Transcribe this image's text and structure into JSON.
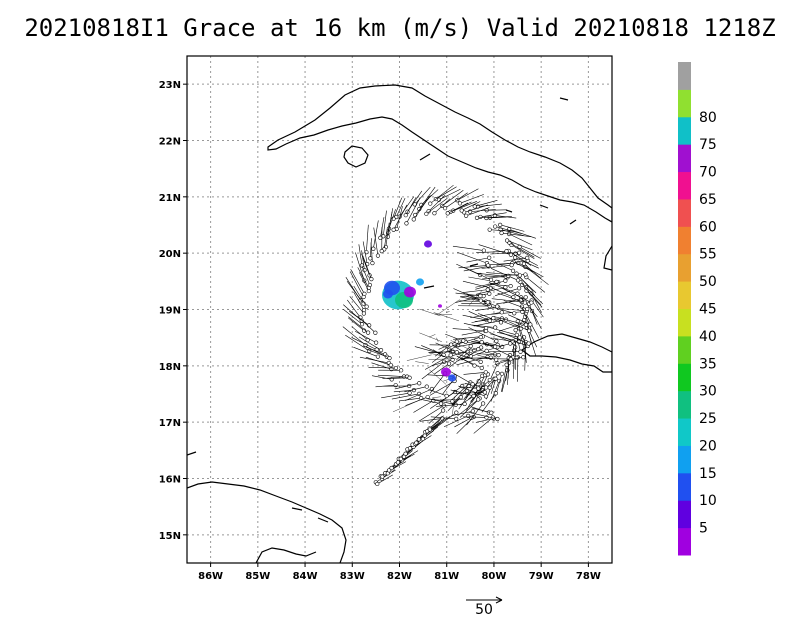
{
  "title": "20210818I1 Grace at 16 km (m/s) Valid 20210818 1218Z",
  "map": {
    "lon_labels": [
      "86W",
      "85W",
      "84W",
      "83W",
      "82W",
      "81W",
      "80W",
      "79W",
      "78W"
    ],
    "lat_labels": [
      "23N",
      "22N",
      "21N",
      "20N",
      "19N",
      "18N",
      "17N",
      "16N",
      "15N"
    ],
    "lon_range": [
      -86.5,
      -77.5
    ],
    "lat_range": [
      14.5,
      23.5
    ],
    "gridlines": "dotted",
    "coastline_color": "#000000",
    "barb_color": "#000000"
  },
  "colorbar": {
    "labels": [
      "5",
      "10",
      "15",
      "20",
      "25",
      "30",
      "35",
      "40",
      "45",
      "50",
      "55",
      "60",
      "65",
      "70",
      "75",
      "80"
    ],
    "colors": [
      "#a000e0",
      "#6000e0",
      "#2050f0",
      "#10a0f0",
      "#10c8c8",
      "#10c080",
      "#10c820",
      "#60d020",
      "#c8e020",
      "#e8c830",
      "#e8a030",
      "#f08030",
      "#f05050",
      "#f01090",
      "#a010d0",
      "#10c0c8",
      "#90e030",
      "#a0a0a0"
    ]
  },
  "reference_vector": {
    "label": "50"
  }
}
